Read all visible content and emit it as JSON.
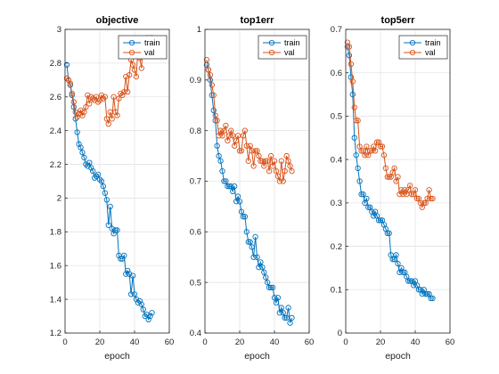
{
  "colors": {
    "train": "#0072BD",
    "val": "#D95319",
    "axis": "#262626",
    "grid": "#e3e3e3"
  },
  "chart_data": [
    {
      "type": "line",
      "title": "objective",
      "xlabel": "epoch",
      "ylabel": "",
      "xlim": [
        0,
        60
      ],
      "ylim": [
        1.2,
        3.0
      ],
      "xticks": [
        "0",
        "20",
        "40",
        "60"
      ],
      "yticks": [
        "1.2",
        "1.4",
        "1.6",
        "1.8",
        "2",
        "2.2",
        "2.4",
        "2.6",
        "2.8",
        "3"
      ],
      "grid": true,
      "legend_position": "top-right",
      "series": [
        {
          "name": "train",
          "x": [
            1,
            2,
            3,
            4,
            5,
            6,
            7,
            8,
            9,
            10,
            11,
            12,
            13,
            14,
            15,
            16,
            17,
            18,
            19,
            20,
            21,
            22,
            23,
            24,
            25,
            26,
            27,
            28,
            29,
            30,
            31,
            32,
            33,
            34,
            35,
            36,
            37,
            38,
            39,
            40,
            41,
            42,
            43,
            44,
            45,
            46,
            47,
            48,
            49,
            50
          ],
          "values": [
            2.79,
            2.7,
            2.67,
            2.61,
            2.54,
            2.47,
            2.39,
            2.32,
            2.3,
            2.27,
            2.24,
            2.2,
            2.19,
            2.21,
            2.18,
            2.16,
            2.12,
            2.13,
            2.14,
            2.11,
            2.1,
            2.07,
            2.03,
            1.99,
            1.84,
            1.95,
            1.82,
            1.79,
            1.81,
            1.81,
            1.66,
            1.64,
            1.64,
            1.66,
            1.55,
            1.57,
            1.55,
            1.43,
            1.54,
            1.43,
            1.4,
            1.38,
            1.39,
            1.37,
            1.34,
            1.3,
            1.31,
            1.28,
            1.3,
            1.32
          ]
        },
        {
          "name": "val",
          "x": [
            1,
            2,
            3,
            4,
            5,
            6,
            7,
            8,
            9,
            10,
            11,
            12,
            13,
            14,
            15,
            16,
            17,
            18,
            19,
            20,
            21,
            22,
            23,
            24,
            25,
            26,
            27,
            28,
            29,
            30,
            31,
            32,
            33,
            34,
            35,
            36,
            37,
            38,
            39,
            40,
            41,
            42,
            43,
            44,
            45,
            46,
            47,
            48,
            49,
            50
          ],
          "values": [
            2.71,
            2.7,
            2.68,
            2.62,
            2.57,
            2.51,
            2.48,
            2.5,
            2.52,
            2.49,
            2.51,
            2.54,
            2.61,
            2.56,
            2.6,
            2.59,
            2.58,
            2.6,
            2.57,
            2.58,
            2.61,
            2.59,
            2.6,
            2.47,
            2.44,
            2.51,
            2.47,
            2.6,
            2.51,
            2.49,
            2.59,
            2.62,
            2.61,
            2.63,
            2.72,
            2.63,
            2.73,
            2.82,
            2.79,
            2.76,
            2.72,
            2.89,
            2.83,
            2.77,
            2.93,
            2.85,
            2.95,
            2.92,
            2.95,
            2.95
          ]
        }
      ]
    },
    {
      "type": "line",
      "title": "top1err",
      "xlabel": "epoch",
      "ylabel": "",
      "xlim": [
        0,
        60
      ],
      "ylim": [
        0.4,
        1.0
      ],
      "xticks": [
        "0",
        "20",
        "40",
        "60"
      ],
      "yticks": [
        "0.4",
        "0.5",
        "0.6",
        "0.7",
        "0.8",
        "0.9",
        "1"
      ],
      "grid": true,
      "legend_position": "top-right",
      "series": [
        {
          "name": "train",
          "x": [
            1,
            2,
            3,
            4,
            5,
            6,
            7,
            8,
            9,
            10,
            11,
            12,
            13,
            14,
            15,
            16,
            17,
            18,
            19,
            20,
            21,
            22,
            23,
            24,
            25,
            26,
            27,
            28,
            29,
            30,
            31,
            32,
            33,
            34,
            35,
            36,
            37,
            38,
            39,
            40,
            41,
            42,
            43,
            44,
            45,
            46,
            47,
            48,
            49,
            50
          ],
          "values": [
            0.93,
            0.92,
            0.9,
            0.87,
            0.84,
            0.82,
            0.77,
            0.75,
            0.74,
            0.72,
            0.7,
            0.7,
            0.69,
            0.69,
            0.69,
            0.68,
            0.69,
            0.66,
            0.67,
            0.66,
            0.64,
            0.63,
            0.63,
            0.6,
            0.58,
            0.58,
            0.57,
            0.55,
            0.59,
            0.55,
            0.53,
            0.54,
            0.53,
            0.52,
            0.51,
            0.5,
            0.49,
            0.49,
            0.49,
            0.47,
            0.46,
            0.47,
            0.44,
            0.45,
            0.44,
            0.43,
            0.43,
            0.45,
            0.42,
            0.43
          ]
        },
        {
          "name": "val",
          "x": [
            1,
            2,
            3,
            4,
            5,
            6,
            7,
            8,
            9,
            10,
            11,
            12,
            13,
            14,
            15,
            16,
            17,
            18,
            19,
            20,
            21,
            22,
            23,
            24,
            25,
            26,
            27,
            28,
            29,
            30,
            31,
            32,
            33,
            34,
            35,
            36,
            37,
            38,
            39,
            40,
            41,
            42,
            43,
            44,
            45,
            46,
            47,
            48,
            49,
            50
          ],
          "values": [
            0.94,
            0.92,
            0.91,
            0.89,
            0.87,
            0.83,
            0.82,
            0.79,
            0.8,
            0.79,
            0.8,
            0.81,
            0.78,
            0.79,
            0.8,
            0.79,
            0.77,
            0.78,
            0.79,
            0.76,
            0.76,
            0.79,
            0.8,
            0.77,
            0.74,
            0.77,
            0.76,
            0.73,
            0.76,
            0.76,
            0.75,
            0.74,
            0.74,
            0.73,
            0.74,
            0.74,
            0.72,
            0.75,
            0.73,
            0.74,
            0.72,
            0.71,
            0.7,
            0.74,
            0.7,
            0.72,
            0.75,
            0.74,
            0.73,
            0.72
          ]
        }
      ]
    },
    {
      "type": "line",
      "title": "top5err",
      "xlabel": "epoch",
      "ylabel": "",
      "xlim": [
        0,
        60
      ],
      "ylim": [
        0,
        0.7
      ],
      "xticks": [
        "0",
        "20",
        "40",
        "60"
      ],
      "yticks": [
        "0",
        "0.1",
        "0.2",
        "0.3",
        "0.4",
        "0.5",
        "0.6",
        "0.7"
      ],
      "grid": true,
      "legend_position": "top-right",
      "series": [
        {
          "name": "train",
          "x": [
            1,
            2,
            3,
            4,
            5,
            6,
            7,
            8,
            9,
            10,
            11,
            12,
            13,
            14,
            15,
            16,
            17,
            18,
            19,
            20,
            21,
            22,
            23,
            24,
            25,
            26,
            27,
            28,
            29,
            30,
            31,
            32,
            33,
            34,
            35,
            36,
            37,
            38,
            39,
            40,
            41,
            42,
            43,
            44,
            45,
            46,
            47,
            48,
            49,
            50
          ],
          "values": [
            0.66,
            0.64,
            0.59,
            0.55,
            0.45,
            0.41,
            0.38,
            0.35,
            0.32,
            0.32,
            0.3,
            0.31,
            0.29,
            0.29,
            0.28,
            0.27,
            0.28,
            0.27,
            0.26,
            0.26,
            0.26,
            0.25,
            0.24,
            0.23,
            0.23,
            0.18,
            0.17,
            0.17,
            0.18,
            0.16,
            0.14,
            0.15,
            0.14,
            0.14,
            0.13,
            0.12,
            0.12,
            0.12,
            0.11,
            0.12,
            0.11,
            0.1,
            0.1,
            0.09,
            0.1,
            0.09,
            0.09,
            0.09,
            0.08,
            0.08
          ]
        },
        {
          "name": "val",
          "x": [
            1,
            2,
            3,
            4,
            5,
            6,
            7,
            8,
            9,
            10,
            11,
            12,
            13,
            14,
            15,
            16,
            17,
            18,
            19,
            20,
            21,
            22,
            23,
            24,
            25,
            26,
            27,
            28,
            29,
            30,
            31,
            32,
            33,
            34,
            35,
            36,
            37,
            38,
            39,
            40,
            41,
            42,
            43,
            44,
            45,
            46,
            47,
            48,
            49,
            50
          ],
          "values": [
            0.67,
            0.66,
            0.62,
            0.58,
            0.52,
            0.49,
            0.49,
            0.43,
            0.42,
            0.42,
            0.41,
            0.43,
            0.41,
            0.42,
            0.42,
            0.43,
            0.42,
            0.44,
            0.44,
            0.43,
            0.43,
            0.41,
            0.38,
            0.36,
            0.36,
            0.36,
            0.37,
            0.38,
            0.35,
            0.36,
            0.32,
            0.33,
            0.32,
            0.33,
            0.32,
            0.33,
            0.34,
            0.32,
            0.32,
            0.33,
            0.31,
            0.31,
            0.3,
            0.29,
            0.3,
            0.3,
            0.31,
            0.33,
            0.31,
            0.31
          ]
        }
      ]
    }
  ]
}
